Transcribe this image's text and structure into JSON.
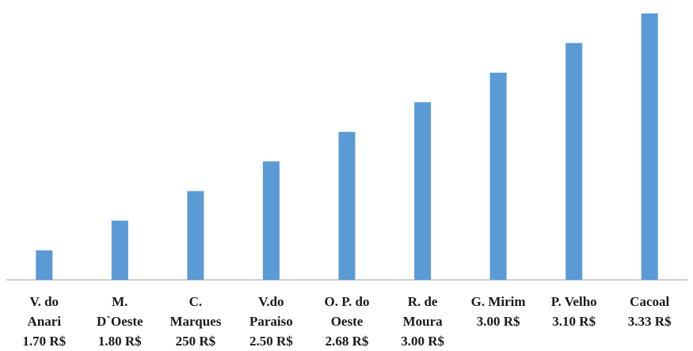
{
  "chart_data": {
    "type": "bar",
    "categories": [
      [
        "V. do",
        "Anari",
        "1.70 R$"
      ],
      [
        "M.",
        "D`Oeste",
        "1.80 R$"
      ],
      [
        "C.",
        "Marques",
        "250 R$"
      ],
      [
        "V.do",
        "Paraiso",
        "2.50 R$"
      ],
      [
        "O. P. do",
        "Oeste",
        "2.68 R$"
      ],
      [
        "R. de",
        "Moura",
        "3.00 R$"
      ],
      [
        "G. Mirim",
        "3.00 R$"
      ],
      [
        "P. Velho",
        "3.10 R$"
      ],
      [
        "Cacoal",
        "3.33 R$"
      ]
    ],
    "values": [
      1,
      2,
      3,
      4,
      5,
      6,
      7,
      8,
      9
    ],
    "title": "",
    "xlabel": "",
    "ylabel": "",
    "ylim": [
      0,
      9
    ],
    "grid": false,
    "legend": "none",
    "bar_color": "#5b9bd5",
    "axis_color": "#bfbfbf"
  }
}
